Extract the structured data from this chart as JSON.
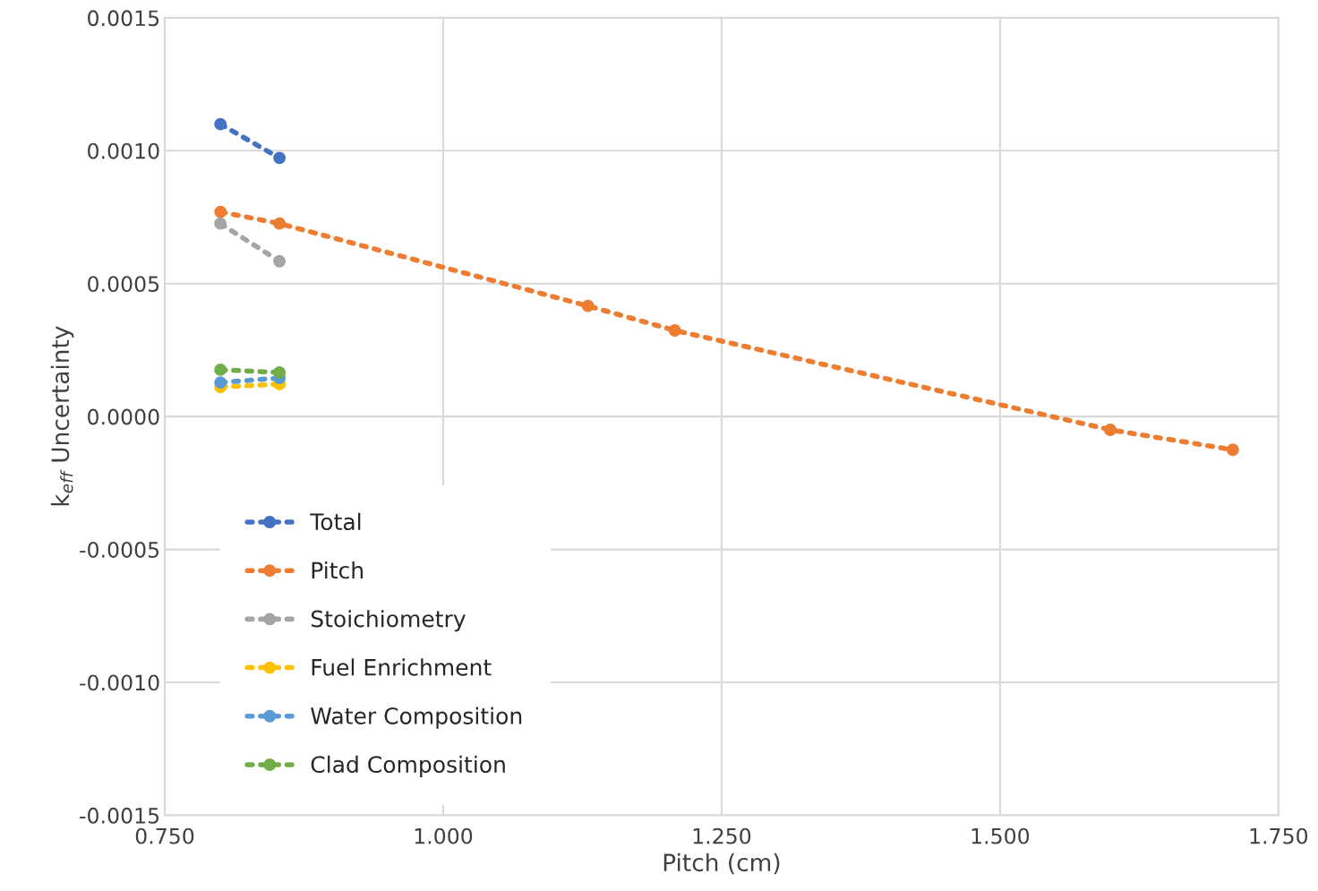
{
  "chart_data": {
    "type": "line",
    "xlabel": "Pitch (cm)",
    "ylabel": "k$_{eff}$ Uncertainty",
    "series": [
      {
        "name": "Total",
        "color": "#4472c4",
        "x": [
          0.8,
          0.853
        ],
        "values": [
          0.0011,
          0.000973
        ]
      },
      {
        "name": "Pitch",
        "color": "#ed7d31",
        "x": [
          0.8,
          0.853,
          1.13,
          1.208,
          1.599,
          1.709
        ],
        "values": [
          0.00077,
          0.000726,
          0.000416,
          0.000324,
          -5e-05,
          -0.000125
        ]
      },
      {
        "name": "Stoichiometry",
        "color": "#a5a5a5",
        "x": [
          0.8,
          0.853
        ],
        "values": [
          0.000726,
          0.000584
        ]
      },
      {
        "name": "Fuel Enrichment",
        "color": "#ffc000",
        "x": [
          0.8,
          0.853
        ],
        "values": [
          0.000111,
          0.000122
        ]
      },
      {
        "name": "Water Composition",
        "color": "#5b9bd5",
        "x": [
          0.8,
          0.853
        ],
        "values": [
          0.000128,
          0.000145
        ]
      },
      {
        "name": "Clad Composition",
        "color": "#70ad47",
        "x": [
          0.8,
          0.853
        ],
        "values": [
          0.000176,
          0.000166
        ]
      }
    ],
    "xlim": [
      0.75,
      1.75
    ],
    "xticks": [
      {
        "value": 0.75,
        "label": "0.750"
      },
      {
        "value": 1.0,
        "label": "1.000"
      },
      {
        "value": 1.25,
        "label": "1.250"
      },
      {
        "value": 1.5,
        "label": "1.500"
      },
      {
        "value": 1.75,
        "label": "1.750"
      }
    ],
    "ylim": [
      -0.0015,
      0.0015
    ],
    "yticks": [
      {
        "value": -0.0015,
        "label": "-0.0015"
      },
      {
        "value": -0.001,
        "label": "-0.0010"
      },
      {
        "value": -0.0005,
        "label": "-0.0005"
      },
      {
        "value": 0,
        "label": "0.0000"
      },
      {
        "value": 0.0005,
        "label": "0.0005"
      },
      {
        "value": 0.001,
        "label": "0.0010"
      },
      {
        "value": 0.0015,
        "label": "0.0015"
      }
    ],
    "grid": true,
    "legend": "bottom left",
    "marker": "circle",
    "line_style": "dotted"
  }
}
